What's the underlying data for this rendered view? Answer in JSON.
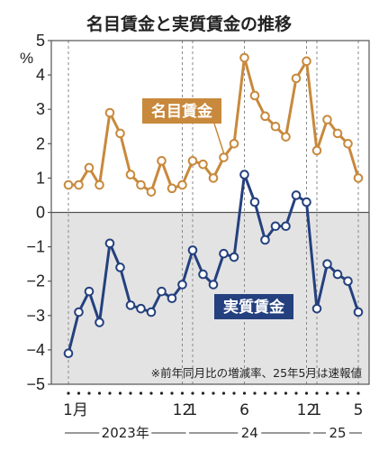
{
  "chart_data": {
    "type": "line",
    "title": "名目賃金と実質賃金の推移",
    "ylabel": "%",
    "ylim": [
      -5,
      5
    ],
    "yticks": [
      5,
      4,
      3,
      2,
      1,
      0,
      -1,
      -2,
      -3,
      -4,
      -5
    ],
    "grid": "vertical-dashed",
    "x": [
      "2023-01",
      "2023-02",
      "2023-03",
      "2023-04",
      "2023-05",
      "2023-06",
      "2023-07",
      "2023-08",
      "2023-09",
      "2023-10",
      "2023-11",
      "2023-12",
      "2024-01",
      "2024-02",
      "2024-03",
      "2024-04",
      "2024-05",
      "2024-06",
      "2024-07",
      "2024-08",
      "2024-09",
      "2024-10",
      "2024-11",
      "2024-12",
      "2025-01",
      "2025-02",
      "2025-03",
      "2025-04",
      "2025-05"
    ],
    "x_tick_labels": [
      {
        "month": "2023-01",
        "label": "1月"
      },
      {
        "month": "2023-12",
        "label": "12"
      },
      {
        "month": "2024-01",
        "label": "1"
      },
      {
        "month": "2024-06",
        "label": "6"
      },
      {
        "month": "2024-12",
        "label": "12"
      },
      {
        "month": "2025-01",
        "label": "1"
      },
      {
        "month": "2025-05",
        "label": "5"
      }
    ],
    "year_labels": [
      {
        "label": "2023年",
        "from": "2023-01",
        "to": "2023-12"
      },
      {
        "label": "24",
        "from": "2024-01",
        "to": "2024-12"
      },
      {
        "label": "25",
        "from": "2025-01",
        "to": "2025-05"
      }
    ],
    "series": [
      {
        "name": "名目賃金",
        "color": "#c8893c",
        "values": [
          0.8,
          0.8,
          1.3,
          0.8,
          2.9,
          2.3,
          1.1,
          0.8,
          0.6,
          1.5,
          0.7,
          0.8,
          1.5,
          1.4,
          1.0,
          1.6,
          2.0,
          4.5,
          3.4,
          2.8,
          2.5,
          2.2,
          3.9,
          4.4,
          1.8,
          2.7,
          2.3,
          2.0,
          1.0
        ]
      },
      {
        "name": "実質賃金",
        "color": "#24407e",
        "values": [
          -4.1,
          -2.9,
          -2.3,
          -3.2,
          -0.9,
          -1.6,
          -2.7,
          -2.8,
          -2.9,
          -2.3,
          -2.5,
          -2.1,
          -1.1,
          -1.8,
          -2.1,
          -1.2,
          -1.3,
          1.1,
          0.3,
          -0.8,
          -0.4,
          -0.4,
          0.5,
          0.3,
          -2.8,
          -1.5,
          -1.8,
          -2.0,
          -2.9
        ]
      }
    ],
    "annotations": [
      "※前年同月比の増減率、25年5月は速報値"
    ]
  }
}
